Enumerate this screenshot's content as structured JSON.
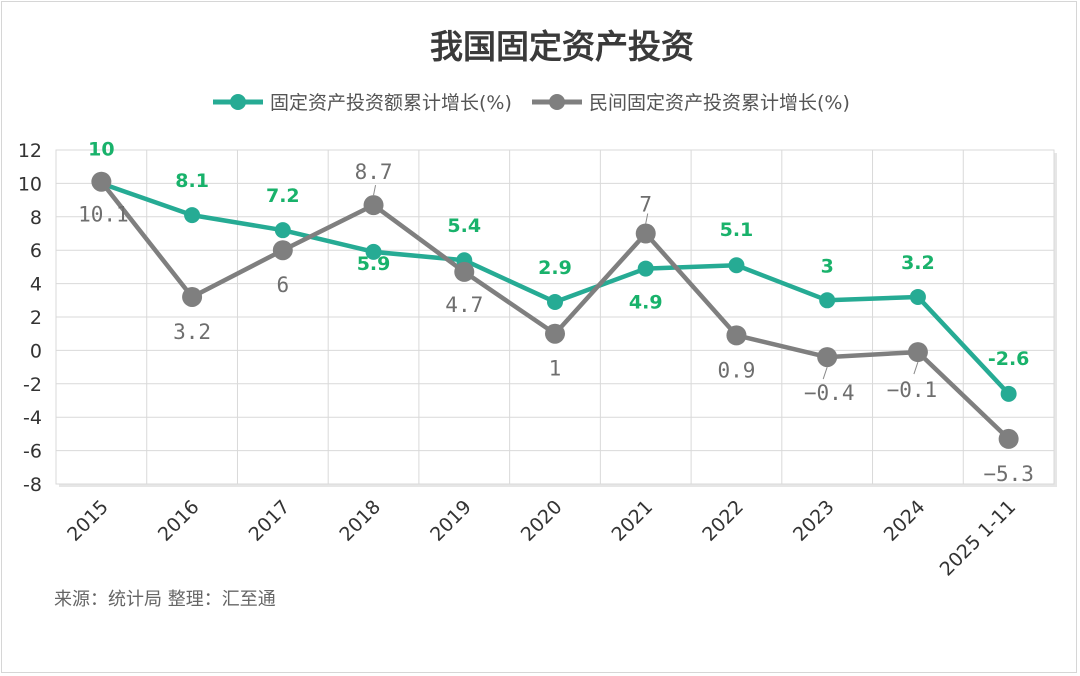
{
  "chart_data": {
    "type": "line",
    "title": "我国固定资产投资",
    "categories": [
      "2015",
      "2016",
      "2017",
      "2018",
      "2019",
      "2020",
      "2021",
      "2022",
      "2023",
      "2024",
      "2025 1-11"
    ],
    "series": [
      {
        "name": "固定资产投资额累计增长(%)",
        "values": [
          10,
          8.1,
          7.2,
          5.9,
          5.4,
          2.9,
          4.9,
          5.1,
          3,
          3.2,
          -2.6
        ],
        "labels": [
          "10",
          "8.1",
          "7.2",
          "5.9",
          "5.4",
          "2.9",
          "4.9",
          "5.1",
          "3",
          "3.2",
          "-2.6"
        ]
      },
      {
        "name": "民间固定资产投资累计增长(%)",
        "values": [
          10.1,
          3.2,
          6,
          8.7,
          4.7,
          1,
          7,
          0.9,
          -0.4,
          -0.1,
          -5.3
        ],
        "labels": [
          "10.1",
          "3.2",
          "6",
          "8.7",
          "4.7",
          "1",
          "7",
          "0.9",
          "−0.4",
          "−0.1",
          "−5.3"
        ]
      }
    ],
    "yticks": [
      "12",
      "10",
      "8",
      "6",
      "4",
      "2",
      "0",
      "-2",
      "-4",
      "-6",
      "-8"
    ],
    "ylim": [
      -8,
      12
    ],
    "grid": true,
    "legend_position": "top-center",
    "xlabel": "",
    "ylabel": ""
  },
  "colors": {
    "series1": "#26ab94",
    "series2": "#7f7f7f",
    "label1": "#19b26b",
    "label2": "#6e6e6e",
    "grid": "#d9d9d9"
  },
  "source_text": "来源：统计局 整理：汇至通"
}
